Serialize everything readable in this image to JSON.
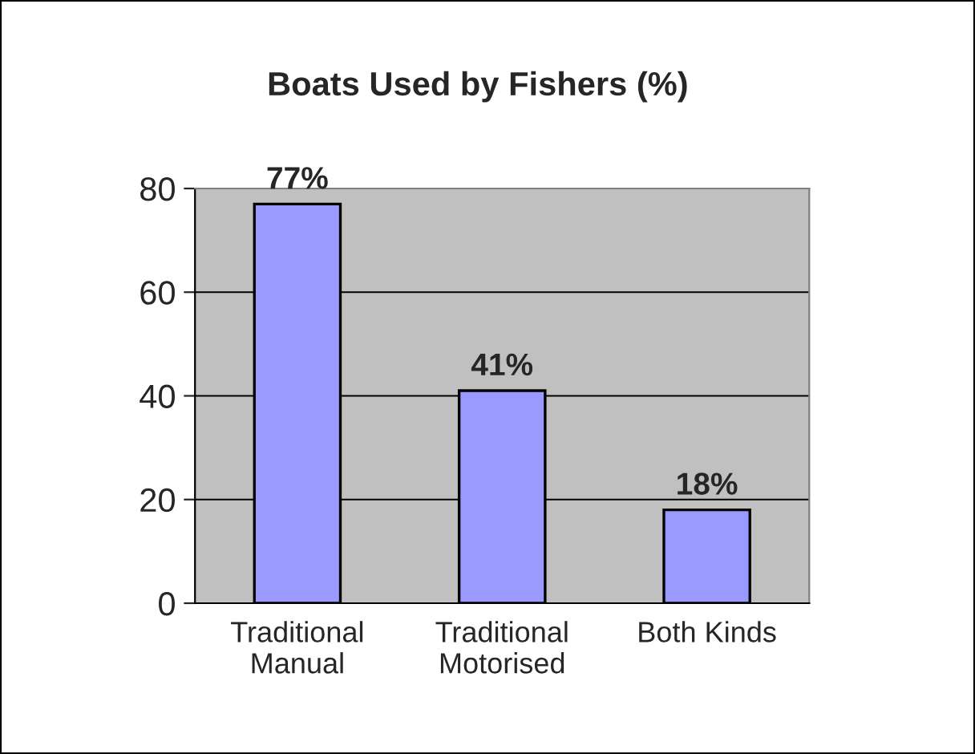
{
  "chart_data": {
    "type": "bar",
    "title": "Boats Used by Fishers (%)",
    "categories": [
      "Traditional\nManual",
      "Traditional\nMotorised",
      "Both Kinds"
    ],
    "values": [
      77,
      41,
      18
    ],
    "value_labels": [
      "77%",
      "41%",
      "18%"
    ],
    "color": "#9999ff",
    "ylim": [
      0,
      80
    ],
    "yticks": [
      0,
      20,
      40,
      60,
      80
    ],
    "grid": "y",
    "legend": false
  }
}
